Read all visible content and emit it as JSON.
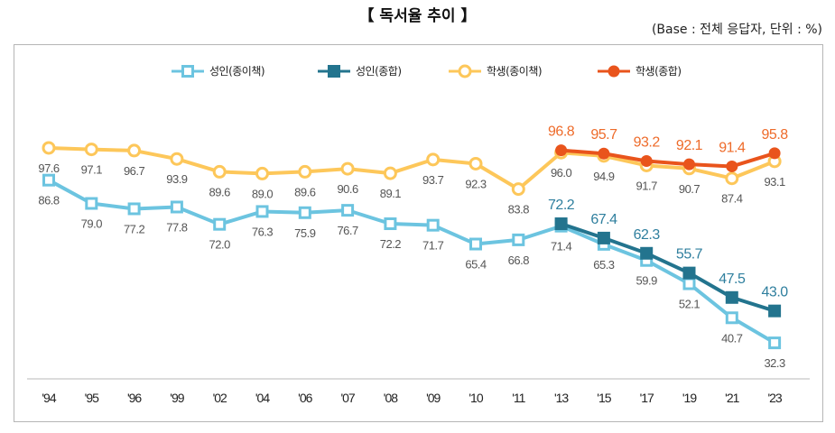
{
  "title": "【 독서율 추이 】",
  "base_note": "(Base : 전체 응답자, 단위 : %)",
  "chart_data": {
    "type": "line",
    "title": "【 독서율 추이 】",
    "categories": [
      "'94",
      "'95",
      "'96",
      "'99",
      "'02",
      "'04",
      "'06",
      "'07",
      "'08",
      "'09",
      "'10",
      "'11",
      "'13",
      "'15",
      "'17",
      "'19",
      "'21",
      "'23"
    ],
    "ylim": [
      30,
      100
    ],
    "grid": false,
    "legend": "top",
    "series": [
      {
        "name": "성인(종이책)",
        "color": "#6cc4e0",
        "marker": "open-square",
        "label_color": "#555555",
        "label_pos": "below",
        "values": [
          86.8,
          79.0,
          77.2,
          77.8,
          72.0,
          76.3,
          75.9,
          76.7,
          72.2,
          71.7,
          65.4,
          66.8,
          71.4,
          65.3,
          59.9,
          52.1,
          40.7,
          32.3
        ]
      },
      {
        "name": "성인(종합)",
        "color": "#23748e",
        "marker": "filled-square",
        "label_color": "#2f7f9e",
        "label_pos": "above",
        "values": [
          null,
          null,
          null,
          null,
          null,
          null,
          null,
          null,
          null,
          null,
          null,
          null,
          72.2,
          67.4,
          62.3,
          55.7,
          47.5,
          43.0
        ]
      },
      {
        "name": "학생(종이책)",
        "color": "#fdc75a",
        "marker": "open-circle",
        "label_color": "#555555",
        "label_pos": "below",
        "values": [
          97.6,
          97.1,
          96.7,
          93.9,
          89.6,
          89.0,
          89.6,
          90.6,
          89.1,
          93.7,
          92.3,
          83.8,
          96.0,
          94.9,
          91.7,
          90.7,
          87.4,
          93.1
        ]
      },
      {
        "name": "학생(종합)",
        "color": "#e9541c",
        "marker": "filled-circle",
        "label_color": "#ee6b2a",
        "label_pos": "above",
        "values": [
          null,
          null,
          null,
          null,
          null,
          null,
          null,
          null,
          null,
          null,
          null,
          null,
          96.8,
          95.7,
          93.2,
          92.1,
          91.4,
          95.8
        ]
      }
    ]
  }
}
